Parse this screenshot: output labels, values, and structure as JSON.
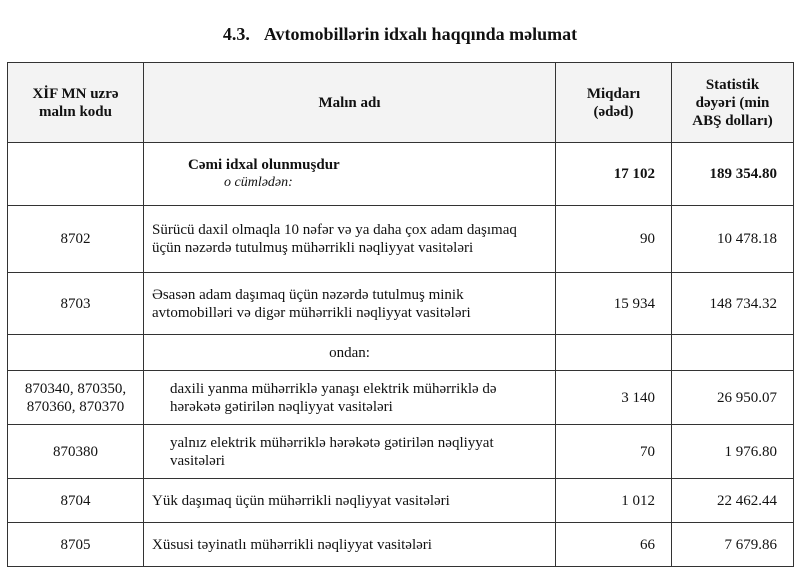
{
  "title": {
    "number": "4.3.",
    "text": "Avtomobillərin idxalı haqqında məlumat"
  },
  "headers": {
    "code": "XİF MN uzrə malın kodu",
    "name": "Malın adı",
    "quantity": "Miqdarı (ədəd)",
    "value": "Statistik dəyəri (min ABŞ dolları)"
  },
  "total": {
    "label": "Cəmi idxal olunmuşdur",
    "sublabel": "o cümlədən:",
    "quantity": "17 102",
    "value": "189 354.80"
  },
  "rows": [
    {
      "code": "8702",
      "name": "Sürücü daxil olmaqla 10 nəfər və ya daha çox adam daşımaq üçün nəzərdə tutulmuş mühərrikli nəqliyyat vasitələri",
      "quantity": "90",
      "value": "10 478.18"
    },
    {
      "code": "8703",
      "name": "Əsasən adam daşımaq üçün nəzərdə tutulmuş minik avtomobilləri və digər mühərrikli nəqliyyat vasitələri",
      "quantity": "15 934",
      "value": "148 734.32"
    },
    {
      "code": "870340, 870350, 870360, 870370",
      "name": "daxili yanma mühərriklə yanaşı elektrik mühərriklə də hərəkətə gətirilən nəqliyyat vasitələri",
      "quantity": "3 140",
      "value": "26 950.07"
    },
    {
      "code": "870380",
      "name": "yalnız elektrik mühərriklə hərəkətə gətirilən nəqliyyat vasitələri",
      "quantity": "70",
      "value": "1 976.80"
    },
    {
      "code": "8704",
      "name": "Yük daşımaq üçün mühərrikli nəqliyyat vasitələri",
      "quantity": "1 012",
      "value": "22 462.44"
    },
    {
      "code": "8705",
      "name": "Xüsusi təyinatlı mühərrikli nəqliyyat vasitələri",
      "quantity": "66",
      "value": "7 679.86"
    }
  ],
  "subheading": "ondan:"
}
